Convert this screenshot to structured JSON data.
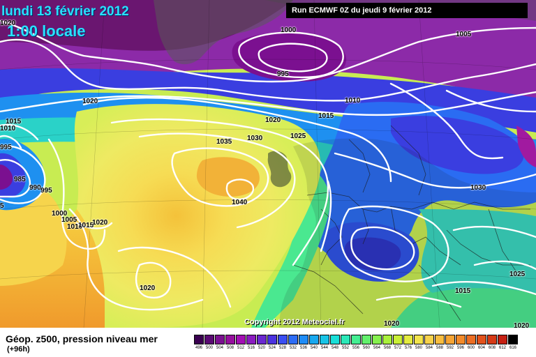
{
  "header": {
    "date": "lundi 13 février 2012",
    "time": "1:00 locale",
    "run": "Run ECMWF 0Z du jeudi 9 février 2012"
  },
  "footer": {
    "title": "Géop. z500, pression niveau mer",
    "subtitle": "(+96h)"
  },
  "copyright": "Copyright 2012 Meteociel.fr",
  "isobars": [
    {
      "value": "1020",
      "id": "iso-1020-nw"
    },
    {
      "value": "1000",
      "id": "iso-1000-n"
    },
    {
      "value": "1005",
      "id": "iso-1005-ne"
    },
    {
      "value": "995",
      "id": "iso-995-n"
    },
    {
      "value": "1010",
      "id": "iso-1010-n"
    },
    {
      "value": "1020",
      "id": "iso-1020-greenland"
    },
    {
      "value": "1015",
      "id": "iso-1015-north"
    },
    {
      "value": "1020",
      "id": "iso-1020-atl"
    },
    {
      "value": "1025",
      "id": "iso-1025-atl"
    },
    {
      "value": "1030",
      "id": "iso-1030-atl"
    },
    {
      "value": "1035",
      "id": "iso-1035-atl"
    },
    {
      "value": "1040",
      "id": "iso-1040-atl"
    },
    {
      "value": "1015",
      "id": "iso-1015-w"
    },
    {
      "value": "1010",
      "id": "iso-1010-w"
    },
    {
      "value": "995",
      "id": "iso-995-w"
    },
    {
      "value": "985",
      "id": "iso-985-w"
    },
    {
      "value": "990",
      "id": "iso-990-w"
    },
    {
      "value": "995",
      "id": "iso-995-w2"
    },
    {
      "value": "1000",
      "id": "iso-1000-w"
    },
    {
      "value": "1005",
      "id": "iso-1005-w"
    },
    {
      "value": "1010",
      "id": "iso-1010-w2"
    },
    {
      "value": "1015",
      "id": "iso-1015-w2"
    },
    {
      "value": "1020",
      "id": "iso-1020-w2"
    },
    {
      "value": "1020",
      "id": "iso-1020-sw"
    },
    {
      "value": "1030",
      "id": "iso-1030-e"
    },
    {
      "value": "1025",
      "id": "iso-1025-se"
    },
    {
      "value": "1015",
      "id": "iso-1015-se"
    },
    {
      "value": "1020",
      "id": "iso-1020-s"
    },
    {
      "value": "1020",
      "id": "iso-1020-se2"
    },
    {
      "value": "5",
      "id": "iso-5-w"
    }
  ],
  "scale": {
    "values": [
      "496",
      "500",
      "504",
      "508",
      "512",
      "516",
      "520",
      "524",
      "528",
      "532",
      "536",
      "540",
      "544",
      "548",
      "552",
      "556",
      "560",
      "564",
      "568",
      "572",
      "576",
      "580",
      "584",
      "588",
      "592",
      "596",
      "600",
      "604",
      "608",
      "612",
      "616"
    ],
    "colors": [
      "#3a0050",
      "#5a0a73",
      "#7b1090",
      "#960f9e",
      "#a30fb4",
      "#8a1cc0",
      "#6a28d0",
      "#4b32e0",
      "#3a4ef2",
      "#2d6cf5",
      "#1f8cf7",
      "#18a8ef",
      "#18c4e6",
      "#19dfd8",
      "#2be8b8",
      "#44ee92",
      "#63f06c",
      "#86f04e",
      "#a9f03c",
      "#c9ef36",
      "#e3eb40",
      "#f2e44c",
      "#f7d24c",
      "#f8bd40",
      "#f6a434",
      "#f28a2a",
      "#ec6e24",
      "#e2521c",
      "#d63a16",
      "#c52012",
      "#000000"
    ]
  }
}
